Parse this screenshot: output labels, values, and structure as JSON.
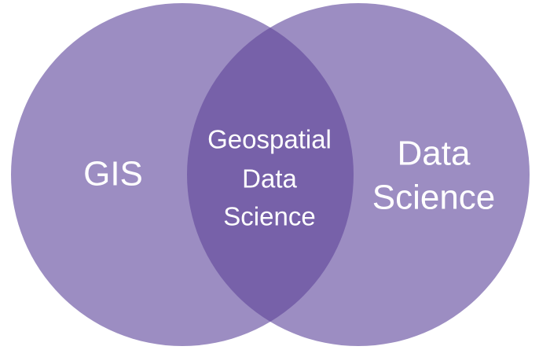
{
  "diagram": {
    "type": "venn",
    "colors": {
      "circle_fill": "#9c8dc2",
      "overlap_fill": "#7761a9",
      "text": "#ffffff",
      "background": "#ffffff"
    },
    "left_circle": {
      "label": "GIS"
    },
    "right_circle": {
      "label_lines": [
        "Data",
        "Science"
      ]
    },
    "intersection": {
      "label_lines": [
        "Geospatial",
        "Data",
        "Science"
      ]
    }
  }
}
